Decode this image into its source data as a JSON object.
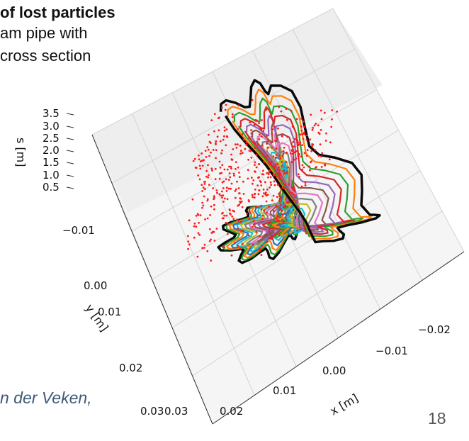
{
  "slide": {
    "heading_fragment": "of lost particles",
    "body_line_1": "am pipe with",
    "body_line_2": "cross section",
    "credit_fragment": "n der Veken,",
    "slide_number": "18"
  },
  "chart_data": {
    "type": "3d-line-scatter",
    "title": "",
    "xlabel": "x [m]",
    "ylabel": "y [m]",
    "zlabel": "s [m]",
    "x_ticks": [
      "0.03",
      "0.02",
      "0.01",
      "0.00",
      "−0.01",
      "−0.02"
    ],
    "y_ticks": [
      "−0.01",
      "0.00",
      "0.01",
      "0.02",
      "0.03"
    ],
    "z_ticks": [
      "3.5",
      "3.0",
      "2.5",
      "2.0",
      "1.5",
      "1.0",
      "0.5"
    ],
    "z_range": [
      0.5,
      3.5
    ],
    "grid": true,
    "description_of_series": {
      "aperture_contours": "Cross-section contours of the beam pipe at successive s positions, morphing from an elliptical aperture (low s) to a rectangular aperture (high s); one colored line per s slice, first and last drawn in black outline",
      "lost_particles": "Red dotted markers showing locations of lost particles on the aperture wall"
    },
    "contour_count": 24,
    "colors": {
      "lost_particles": "#ff1a1a",
      "outline": "#0a0a0a",
      "pane": "#f2f2f2",
      "grid": "#d4d4d4",
      "palette": [
        "#1f77b4",
        "#ff7f0e",
        "#2ca02c",
        "#d62728",
        "#9467bd",
        "#8c564b",
        "#e377c2",
        "#7f7f7f",
        "#bcbd22",
        "#17becf"
      ]
    }
  }
}
